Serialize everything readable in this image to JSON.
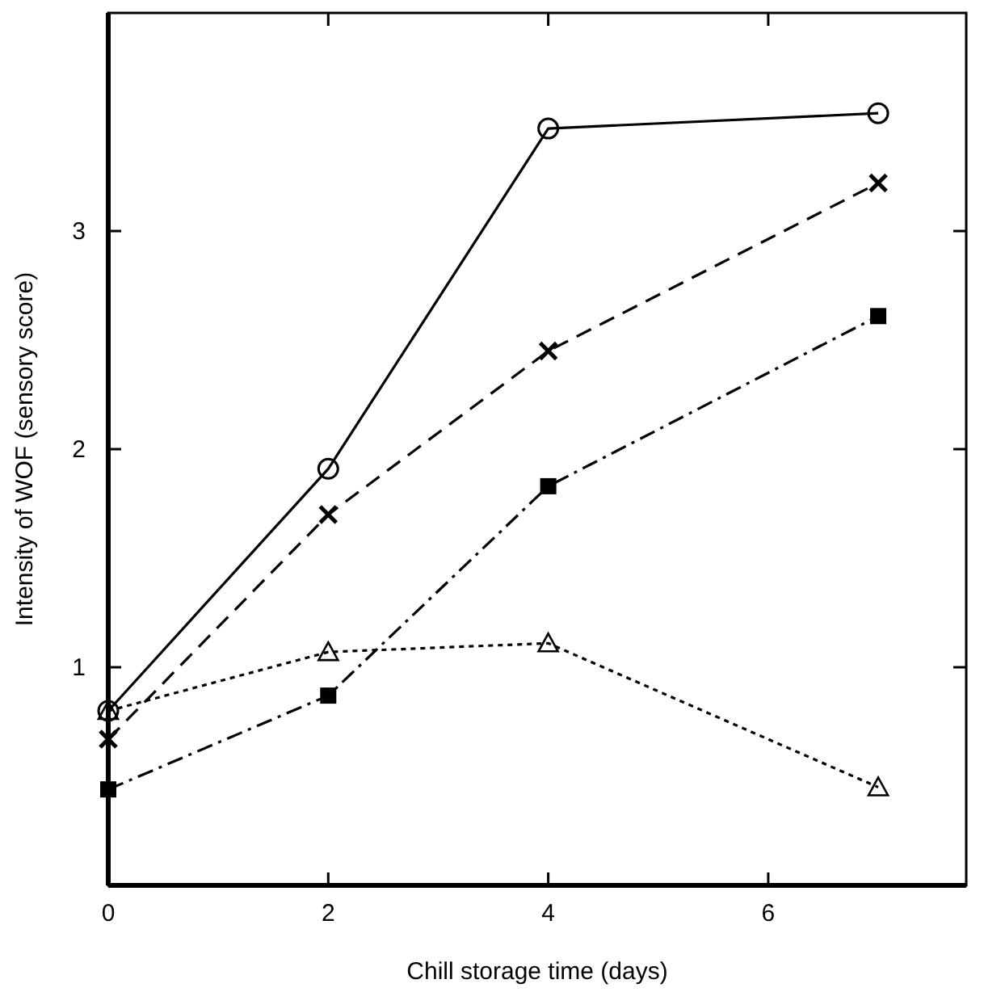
{
  "chart_data": {
    "type": "line",
    "xlabel": "Chill storage time (days)",
    "ylabel": "Intensity of WOF (sensory score)",
    "x": [
      0,
      2,
      4,
      7
    ],
    "series": [
      {
        "color": "#000000",
        "values": [
          0.8,
          1.91,
          3.47,
          3.54
        ],
        "marker": "circle",
        "line_style": "solid"
      },
      {
        "color": "#000000",
        "values": [
          0.67,
          1.7,
          2.45,
          3.22
        ],
        "marker": "cross",
        "line_style": "dashed"
      },
      {
        "color": "#000000",
        "values": [
          0.44,
          0.87,
          1.83,
          2.61
        ],
        "marker": "square",
        "line_style": "dashdot"
      },
      {
        "color": "#000000",
        "values": [
          0.8,
          1.07,
          1.11,
          0.45
        ],
        "marker": "triangle",
        "line_style": "dotted"
      }
    ],
    "xlim": [
      0,
      7.8
    ],
    "ylim": [
      0,
      4
    ],
    "xticks": [
      0,
      2,
      4,
      6
    ],
    "yticks": [
      1,
      2,
      3
    ],
    "grid": false
  }
}
